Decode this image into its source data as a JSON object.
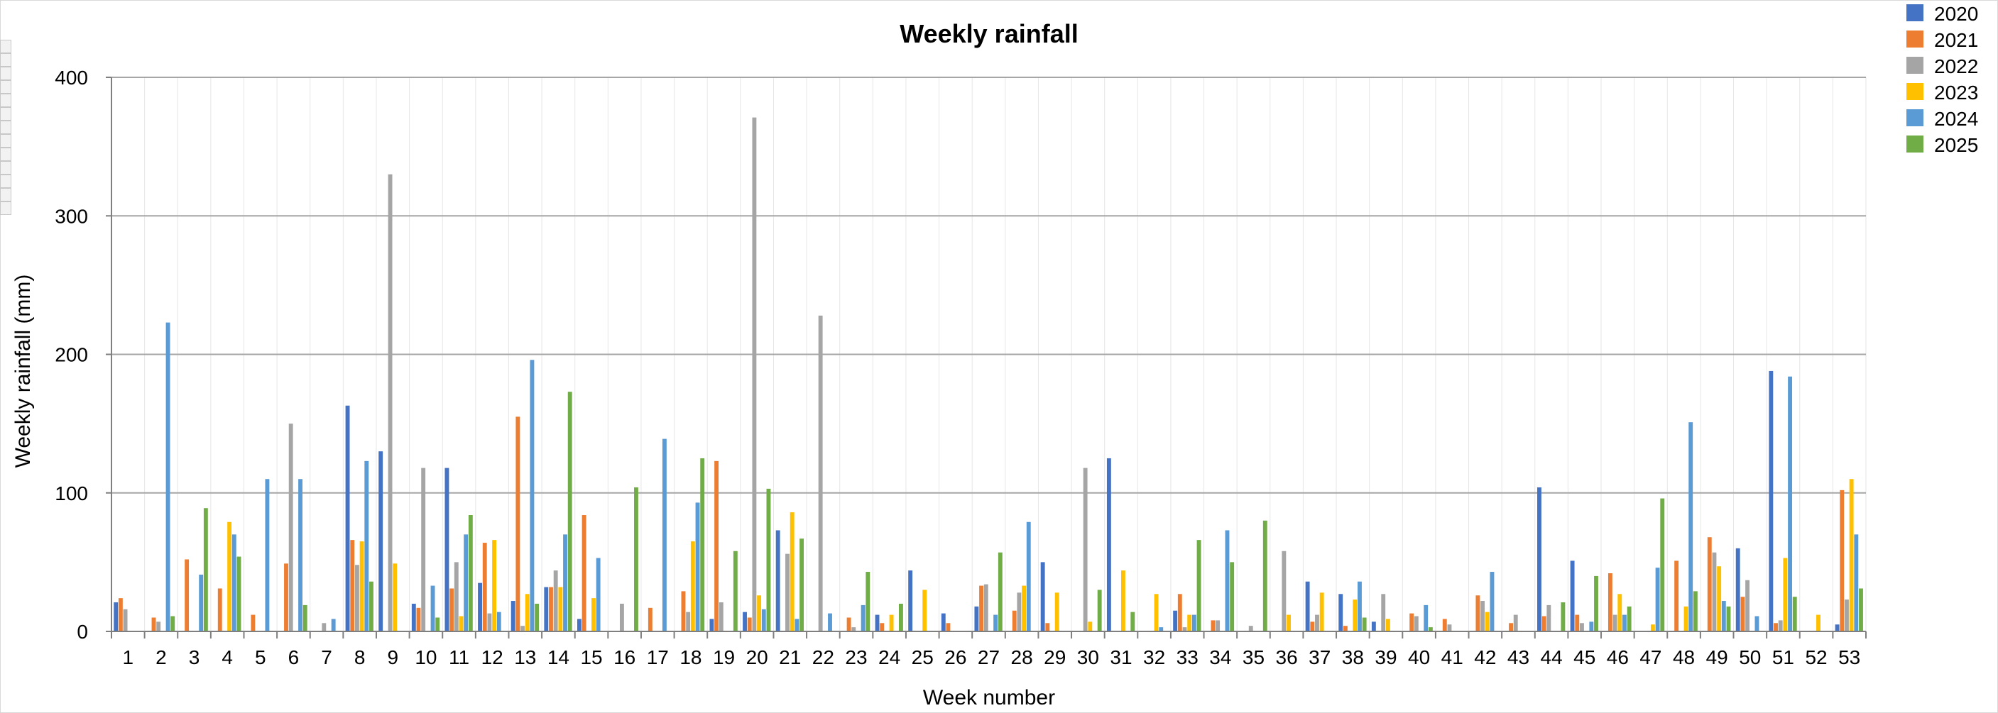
{
  "chart_data": {
    "type": "bar",
    "title": "Weekly rainfall",
    "xlabel": "Week number",
    "ylabel": "Weekly rainfall (mm)",
    "ylim": [
      0,
      400
    ],
    "yticks": [
      0,
      100,
      200,
      300,
      400
    ],
    "grid": true,
    "legend_position": "top-right",
    "categories": [
      "1",
      "2",
      "3",
      "4",
      "5",
      "6",
      "7",
      "8",
      "9",
      "10",
      "11",
      "12",
      "13",
      "14",
      "15",
      "16",
      "17",
      "18",
      "19",
      "20",
      "21",
      "22",
      "23",
      "24",
      "25",
      "26",
      "27",
      "28",
      "29",
      "30",
      "31",
      "32",
      "33",
      "34",
      "35",
      "36",
      "37",
      "38",
      "39",
      "40",
      "41",
      "42",
      "43",
      "44",
      "45",
      "46",
      "47",
      "48",
      "49",
      "50",
      "51",
      "52",
      "53"
    ],
    "series": [
      {
        "name": "2020",
        "color": "#4472C4",
        "values": [
          21,
          0,
          0,
          0,
          0,
          0,
          0,
          163,
          130,
          20,
          118,
          35,
          22,
          32,
          9,
          0,
          0,
          0,
          9,
          14,
          73,
          0,
          0,
          12,
          44,
          13,
          18,
          0,
          50,
          0,
          125,
          0,
          15,
          0,
          0,
          0,
          36,
          27,
          7,
          0,
          0,
          0,
          0,
          104,
          51,
          0,
          0,
          0,
          0,
          60,
          188,
          0,
          5
        ]
      },
      {
        "name": "2021",
        "color": "#ED7D31",
        "values": [
          24,
          10,
          52,
          31,
          12,
          49,
          0,
          66,
          0,
          17,
          31,
          64,
          155,
          32,
          84,
          0,
          17,
          29,
          123,
          10,
          0,
          0,
          10,
          6,
          0,
          6,
          33,
          15,
          6,
          0,
          0,
          0,
          27,
          8,
          0,
          0,
          7,
          4,
          0,
          13,
          9,
          26,
          6,
          11,
          12,
          42,
          0,
          51,
          68,
          25,
          6,
          0,
          102
        ]
      },
      {
        "name": "2022",
        "color": "#A5A5A5",
        "values": [
          16,
          7,
          0,
          0,
          0,
          150,
          6,
          48,
          330,
          118,
          50,
          13,
          4,
          44,
          0,
          20,
          0,
          14,
          21,
          371,
          56,
          228,
          3,
          0,
          0,
          0,
          34,
          28,
          0,
          118,
          0,
          0,
          3,
          8,
          4,
          58,
          12,
          0,
          27,
          11,
          5,
          22,
          12,
          19,
          6,
          12,
          0,
          0,
          57,
          37,
          8,
          0,
          23
        ]
      },
      {
        "name": "2023",
        "color": "#FFC000",
        "values": [
          0,
          0,
          0,
          79,
          0,
          0,
          0,
          65,
          49,
          0,
          11,
          66,
          27,
          32,
          24,
          0,
          0,
          65,
          0,
          26,
          86,
          0,
          0,
          12,
          30,
          0,
          0,
          33,
          28,
          7,
          44,
          27,
          12,
          0,
          0,
          12,
          28,
          23,
          9,
          0,
          0,
          14,
          0,
          0,
          0,
          27,
          5,
          18,
          47,
          0,
          53,
          12,
          110
        ]
      },
      {
        "name": "2024",
        "color": "#5B9BD5",
        "values": [
          0,
          223,
          41,
          70,
          110,
          110,
          9,
          123,
          0,
          33,
          70,
          14,
          196,
          70,
          53,
          0,
          139,
          93,
          0,
          16,
          9,
          13,
          19,
          0,
          0,
          0,
          12,
          79,
          0,
          0,
          0,
          3,
          12,
          73,
          0,
          0,
          0,
          36,
          0,
          19,
          0,
          43,
          0,
          0,
          7,
          12,
          46,
          151,
          22,
          11,
          184,
          0,
          70
        ]
      },
      {
        "name": "2025",
        "color": "#70AD47",
        "values": [
          0,
          11,
          89,
          54,
          0,
          19,
          0,
          36,
          0,
          10,
          84,
          0,
          20,
          173,
          0,
          104,
          0,
          125,
          58,
          103,
          67,
          0,
          43,
          20,
          0,
          0,
          57,
          0,
          0,
          30,
          14,
          0,
          66,
          50,
          80,
          0,
          0,
          10,
          0,
          3,
          0,
          0,
          0,
          21,
          40,
          18,
          96,
          29,
          18,
          0,
          25,
          0,
          31
        ]
      }
    ]
  }
}
